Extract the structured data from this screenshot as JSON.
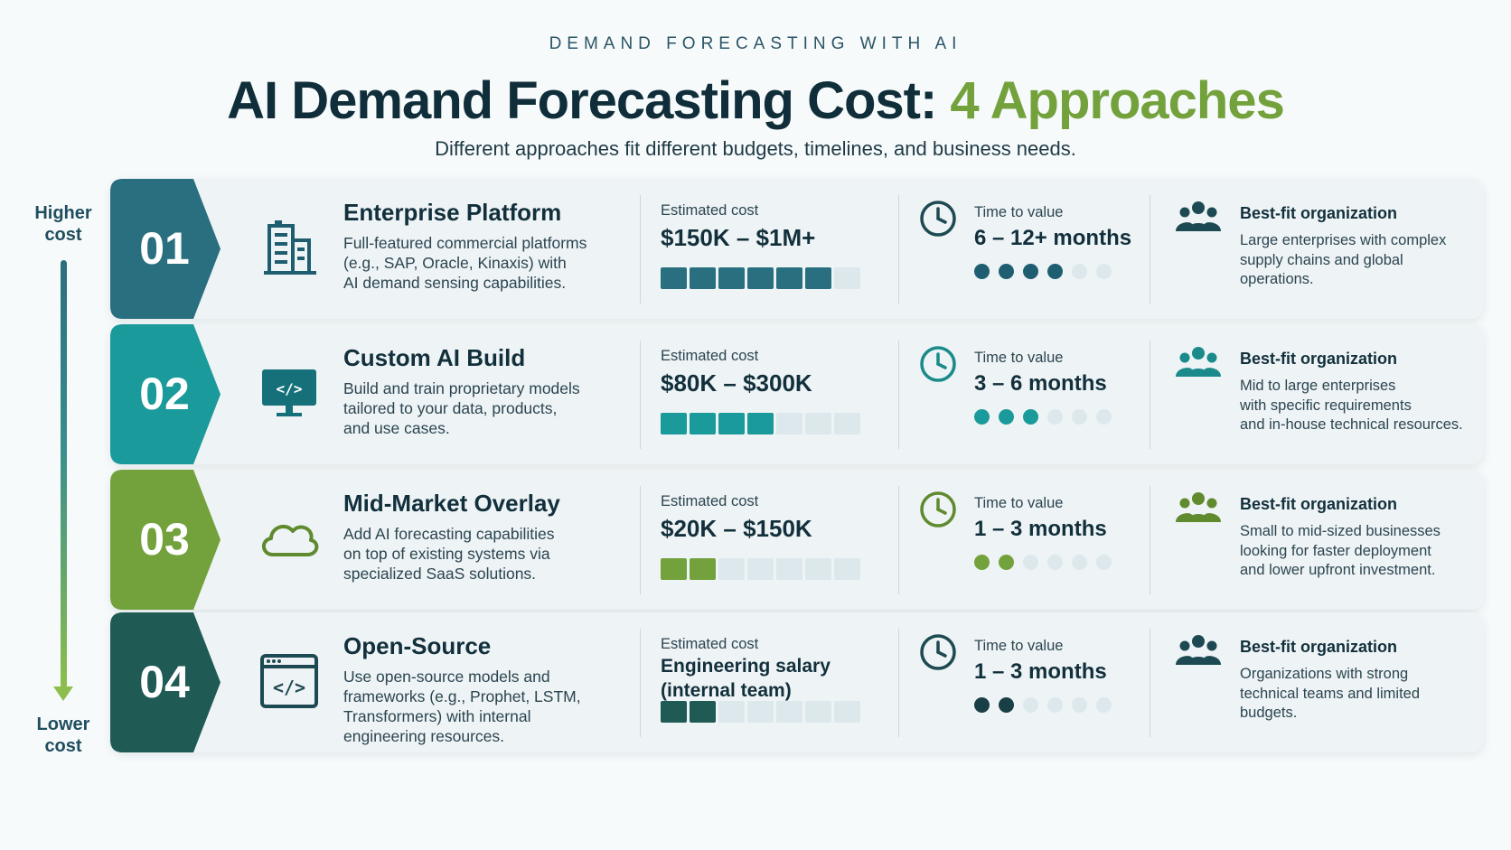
{
  "header": {
    "eyebrow": "DEMAND FORECASTING WITH AI",
    "title_main": "AI Demand Forecasting Cost:",
    "title_accent": "4 Approaches",
    "subtitle": "Different approaches fit different budgets, timelines, and business needs."
  },
  "axis": {
    "top_label_line1": "Higher",
    "top_label_line2": "cost",
    "bottom_label_line1": "Lower",
    "bottom_label_line2": "cost"
  },
  "labels": {
    "cost": "Estimated cost",
    "ttv": "Time to value",
    "fit": "Best-fit organization"
  },
  "approaches": [
    {
      "number": "01",
      "title": "Enterprise Platform",
      "icon": "building-icon",
      "desc": [
        "Full-featured commercial platforms",
        "(e.g., SAP, Oracle, Kinaxis) with",
        "AI demand sensing capabilities."
      ],
      "cost": "$150K – $1M+",
      "cost_level": 6,
      "cost_total": 7,
      "ttv": "6 – 12+ months",
      "ttv_level": 4,
      "ttv_total": 6,
      "fit": [
        "Large enterprises with complex",
        "supply chains and global",
        "operations."
      ],
      "color": "#2a6f80"
    },
    {
      "number": "02",
      "title": "Custom AI Build",
      "icon": "monitor-code-icon",
      "desc": [
        "Build and train proprietary models",
        "tailored to your data, products,",
        "and use cases."
      ],
      "cost": "$80K – $300K",
      "cost_level": 4,
      "cost_total": 7,
      "ttv": "3 – 6 months",
      "ttv_level": 3,
      "ttv_total": 6,
      "fit": [
        "Mid to large enterprises",
        "with specific requirements",
        "and in-house technical resources."
      ],
      "color": "#1a9a9a"
    },
    {
      "number": "03",
      "title": "Mid-Market Overlay",
      "icon": "cloud-icon",
      "desc": [
        "Add AI forecasting capabilities",
        "on top of existing systems via",
        "specialized SaaS solutions."
      ],
      "cost": "$20K – $150K",
      "cost_level": 2,
      "cost_total": 7,
      "ttv": "1 – 3 months",
      "ttv_level": 2,
      "ttv_total": 6,
      "fit": [
        "Small to mid-sized businesses",
        "looking for faster deployment",
        "and lower upfront investment."
      ],
      "color": "#73a23c"
    },
    {
      "number": "04",
      "title": "Open-Source",
      "icon": "code-window-icon",
      "desc": [
        "Use open-source models and",
        "frameworks (e.g., Prophet, LSTM,",
        "Transformers) with internal",
        "engineering resources."
      ],
      "cost": "Engineering salary (internal team)",
      "cost_line1": "Engineering salary",
      "cost_line2": "(internal team)",
      "cost_level": 2,
      "cost_total": 7,
      "ttv": "1 – 3 months",
      "ttv_level": 2,
      "ttv_total": 6,
      "fit": [
        "Organizations with strong",
        "technical teams and limited",
        "budgets."
      ],
      "color": "#1f5a55"
    }
  ]
}
